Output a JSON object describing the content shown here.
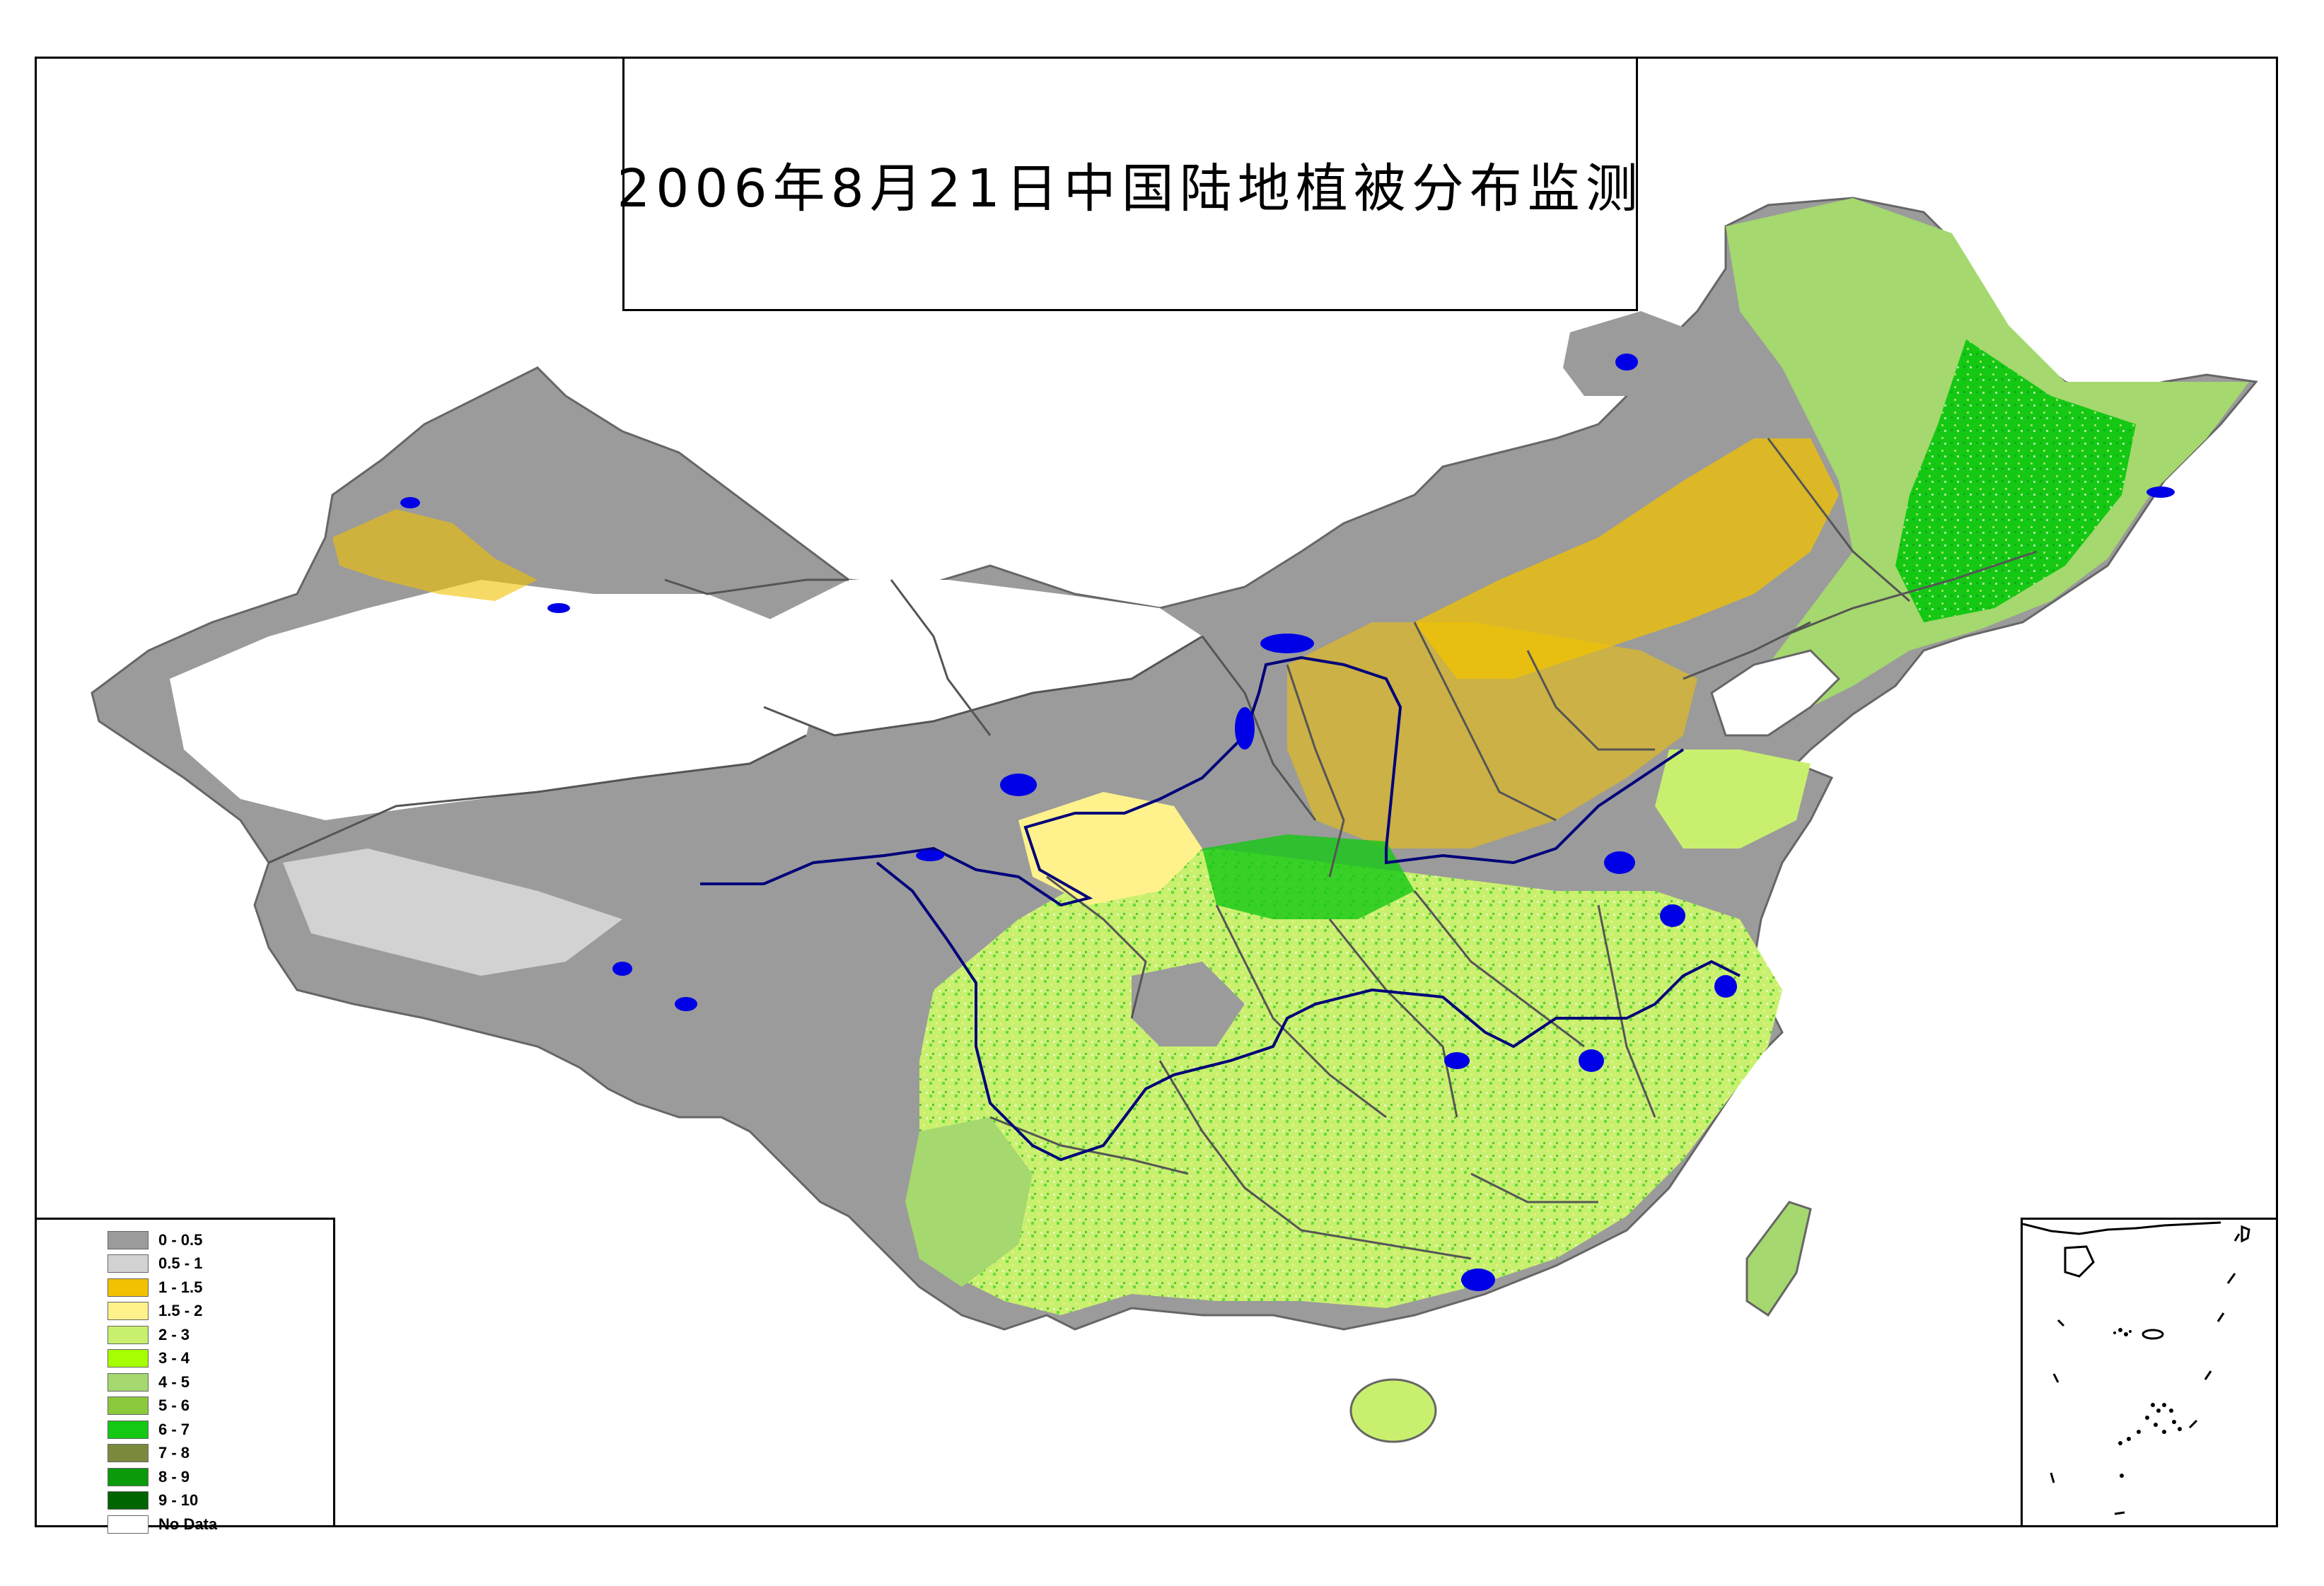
{
  "title": "2006年8月21日中国陆地植被分布监测",
  "legend": {
    "items": [
      {
        "label": "0 - 0.5",
        "color": "#9b9b9b"
      },
      {
        "label": "0.5 - 1",
        "color": "#d2d2d2"
      },
      {
        "label": "1 - 1.5",
        "color": "#f2c200"
      },
      {
        "label": "1.5 - 2",
        "color": "#fff28c"
      },
      {
        "label": "2 - 3",
        "color": "#c8f06e"
      },
      {
        "label": "3 - 4",
        "color": "#a6ff00"
      },
      {
        "label": "4 - 5",
        "color": "#a5d86e"
      },
      {
        "label": "5 - 6",
        "color": "#8cc83c"
      },
      {
        "label": "6 - 7",
        "color": "#14c814"
      },
      {
        "label": "7 - 8",
        "color": "#7a8a3c"
      },
      {
        "label": "8 - 9",
        "color": "#0a9a0a"
      },
      {
        "label": "9 - 10",
        "color": "#006400"
      },
      {
        "label": "No Data",
        "color": "#ffffff"
      }
    ]
  },
  "colors": {
    "water": "#0000e6",
    "river": "#00007a",
    "border": "#555555",
    "frame": "#000000"
  }
}
